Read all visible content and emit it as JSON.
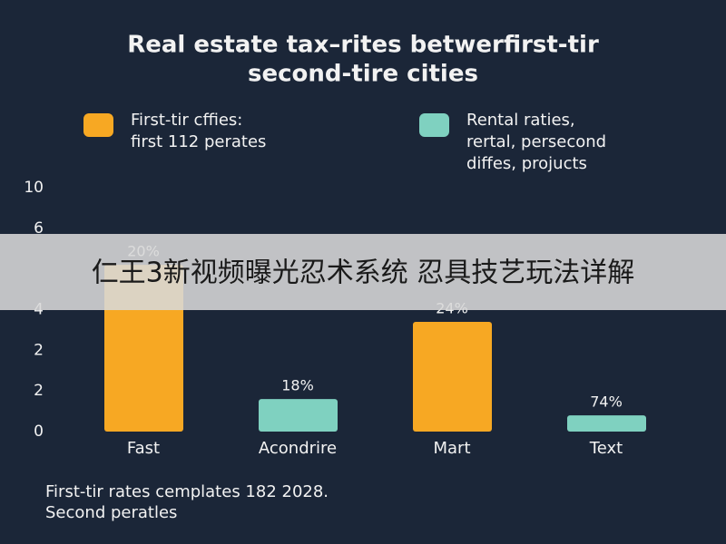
{
  "chart_data": {
    "type": "bar",
    "title_lines": [
      "Real estate tax–rites betwerfirst-tir",
      "second-tire cities"
    ],
    "legend": [
      {
        "lines": [
          "First-tir cffies:",
          "first 112 perates"
        ],
        "color": "#f7a823"
      },
      {
        "lines": [
          "Rental raties,",
          "rertal, persecond",
          "diffes, projucts"
        ],
        "color": "#7fd1c0"
      }
    ],
    "categories": [
      "Fast",
      "Acondrire",
      "Mart",
      "Text"
    ],
    "values": [
      4.1,
      0.8,
      2.7,
      0.4
    ],
    "colors": [
      "#f7a823",
      "#7fd1c0",
      "#f7a823",
      "#7fd1c0"
    ],
    "bar_labels": [
      "20%",
      "18%",
      "24%",
      "74%"
    ],
    "ylim": [
      0,
      6
    ],
    "yticks": [
      0,
      {
        "value": 1,
        "label": "2"
      },
      {
        "value": 2,
        "label": "2"
      },
      {
        "value": 3,
        "label": "4"
      },
      {
        "value": 5,
        "label": "6"
      },
      {
        "value": 6,
        "label": "10"
      }
    ],
    "footnote_lines": [
      "First-tir rates cemplates 182 2028.",
      "Second peratles"
    ]
  },
  "banner": "仁王3新视频曝光忍术系统 忍具技艺玩法详解"
}
